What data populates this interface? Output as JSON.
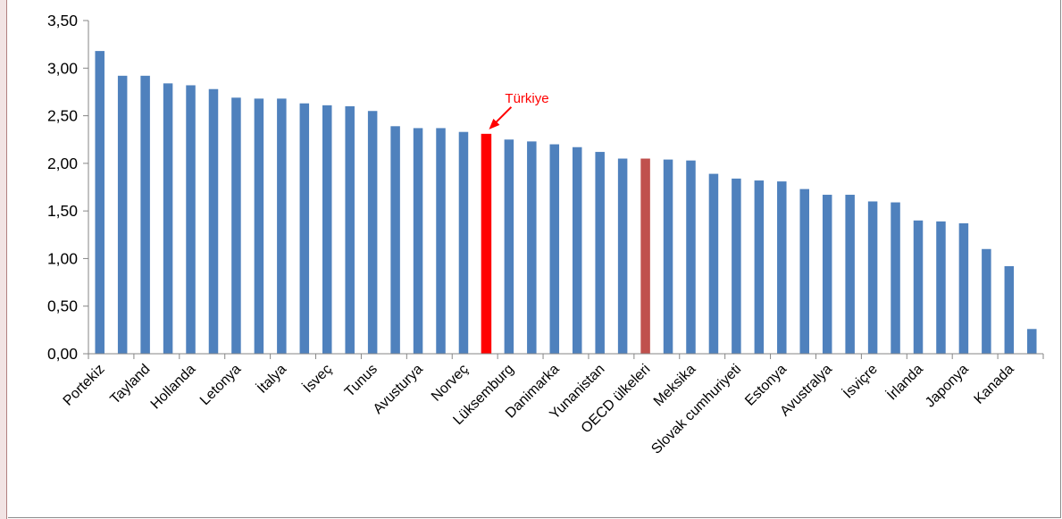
{
  "colors": {
    "bar": "#4f81bd",
    "highlight": "#ff0000",
    "oecd": "#c0504d",
    "annotation": "#ff0000"
  },
  "chart_data": {
    "type": "bar",
    "title": "",
    "xlabel": "",
    "ylabel": "",
    "ylim": [
      0,
      3.5
    ],
    "y_ticks": [
      "0,00",
      "0,50",
      "1,00",
      "1,50",
      "2,00",
      "2,50",
      "3,00",
      "3,50"
    ],
    "grid": false,
    "legend": "none",
    "categories": [
      "Portekiz",
      "",
      "Tayland",
      "",
      "Hollanda",
      "",
      "Letonya",
      "",
      "İtalya",
      "",
      "İsveç",
      "",
      "Tunus",
      "",
      "Avusturya",
      "",
      "Norveç",
      "",
      "Lüksemburg",
      "",
      "Danimarka",
      "",
      "Yunanistan",
      "",
      "OECD ülkeleri",
      "",
      "Meksika",
      "",
      "Slovak cumhuriyeti",
      "",
      "Estonya",
      "",
      "Avustralya",
      "",
      "İsviçre",
      "",
      "İrlanda",
      "",
      "Japonya",
      "",
      "Kanada",
      ""
    ],
    "values": [
      3.18,
      2.92,
      2.92,
      2.84,
      2.82,
      2.78,
      2.69,
      2.68,
      2.68,
      2.63,
      2.61,
      2.6,
      2.55,
      2.39,
      2.37,
      2.37,
      2.33,
      2.31,
      2.25,
      2.23,
      2.2,
      2.17,
      2.12,
      2.05,
      2.05,
      2.04,
      2.03,
      1.89,
      1.84,
      1.82,
      1.81,
      1.73,
      1.67,
      1.67,
      1.6,
      1.59,
      1.4,
      1.39,
      1.37,
      1.1,
      0.92,
      0.26
    ],
    "highlight_index": 17,
    "oecd_index": 24,
    "annotation": {
      "text": "Türkiye",
      "target_index": 17
    }
  }
}
